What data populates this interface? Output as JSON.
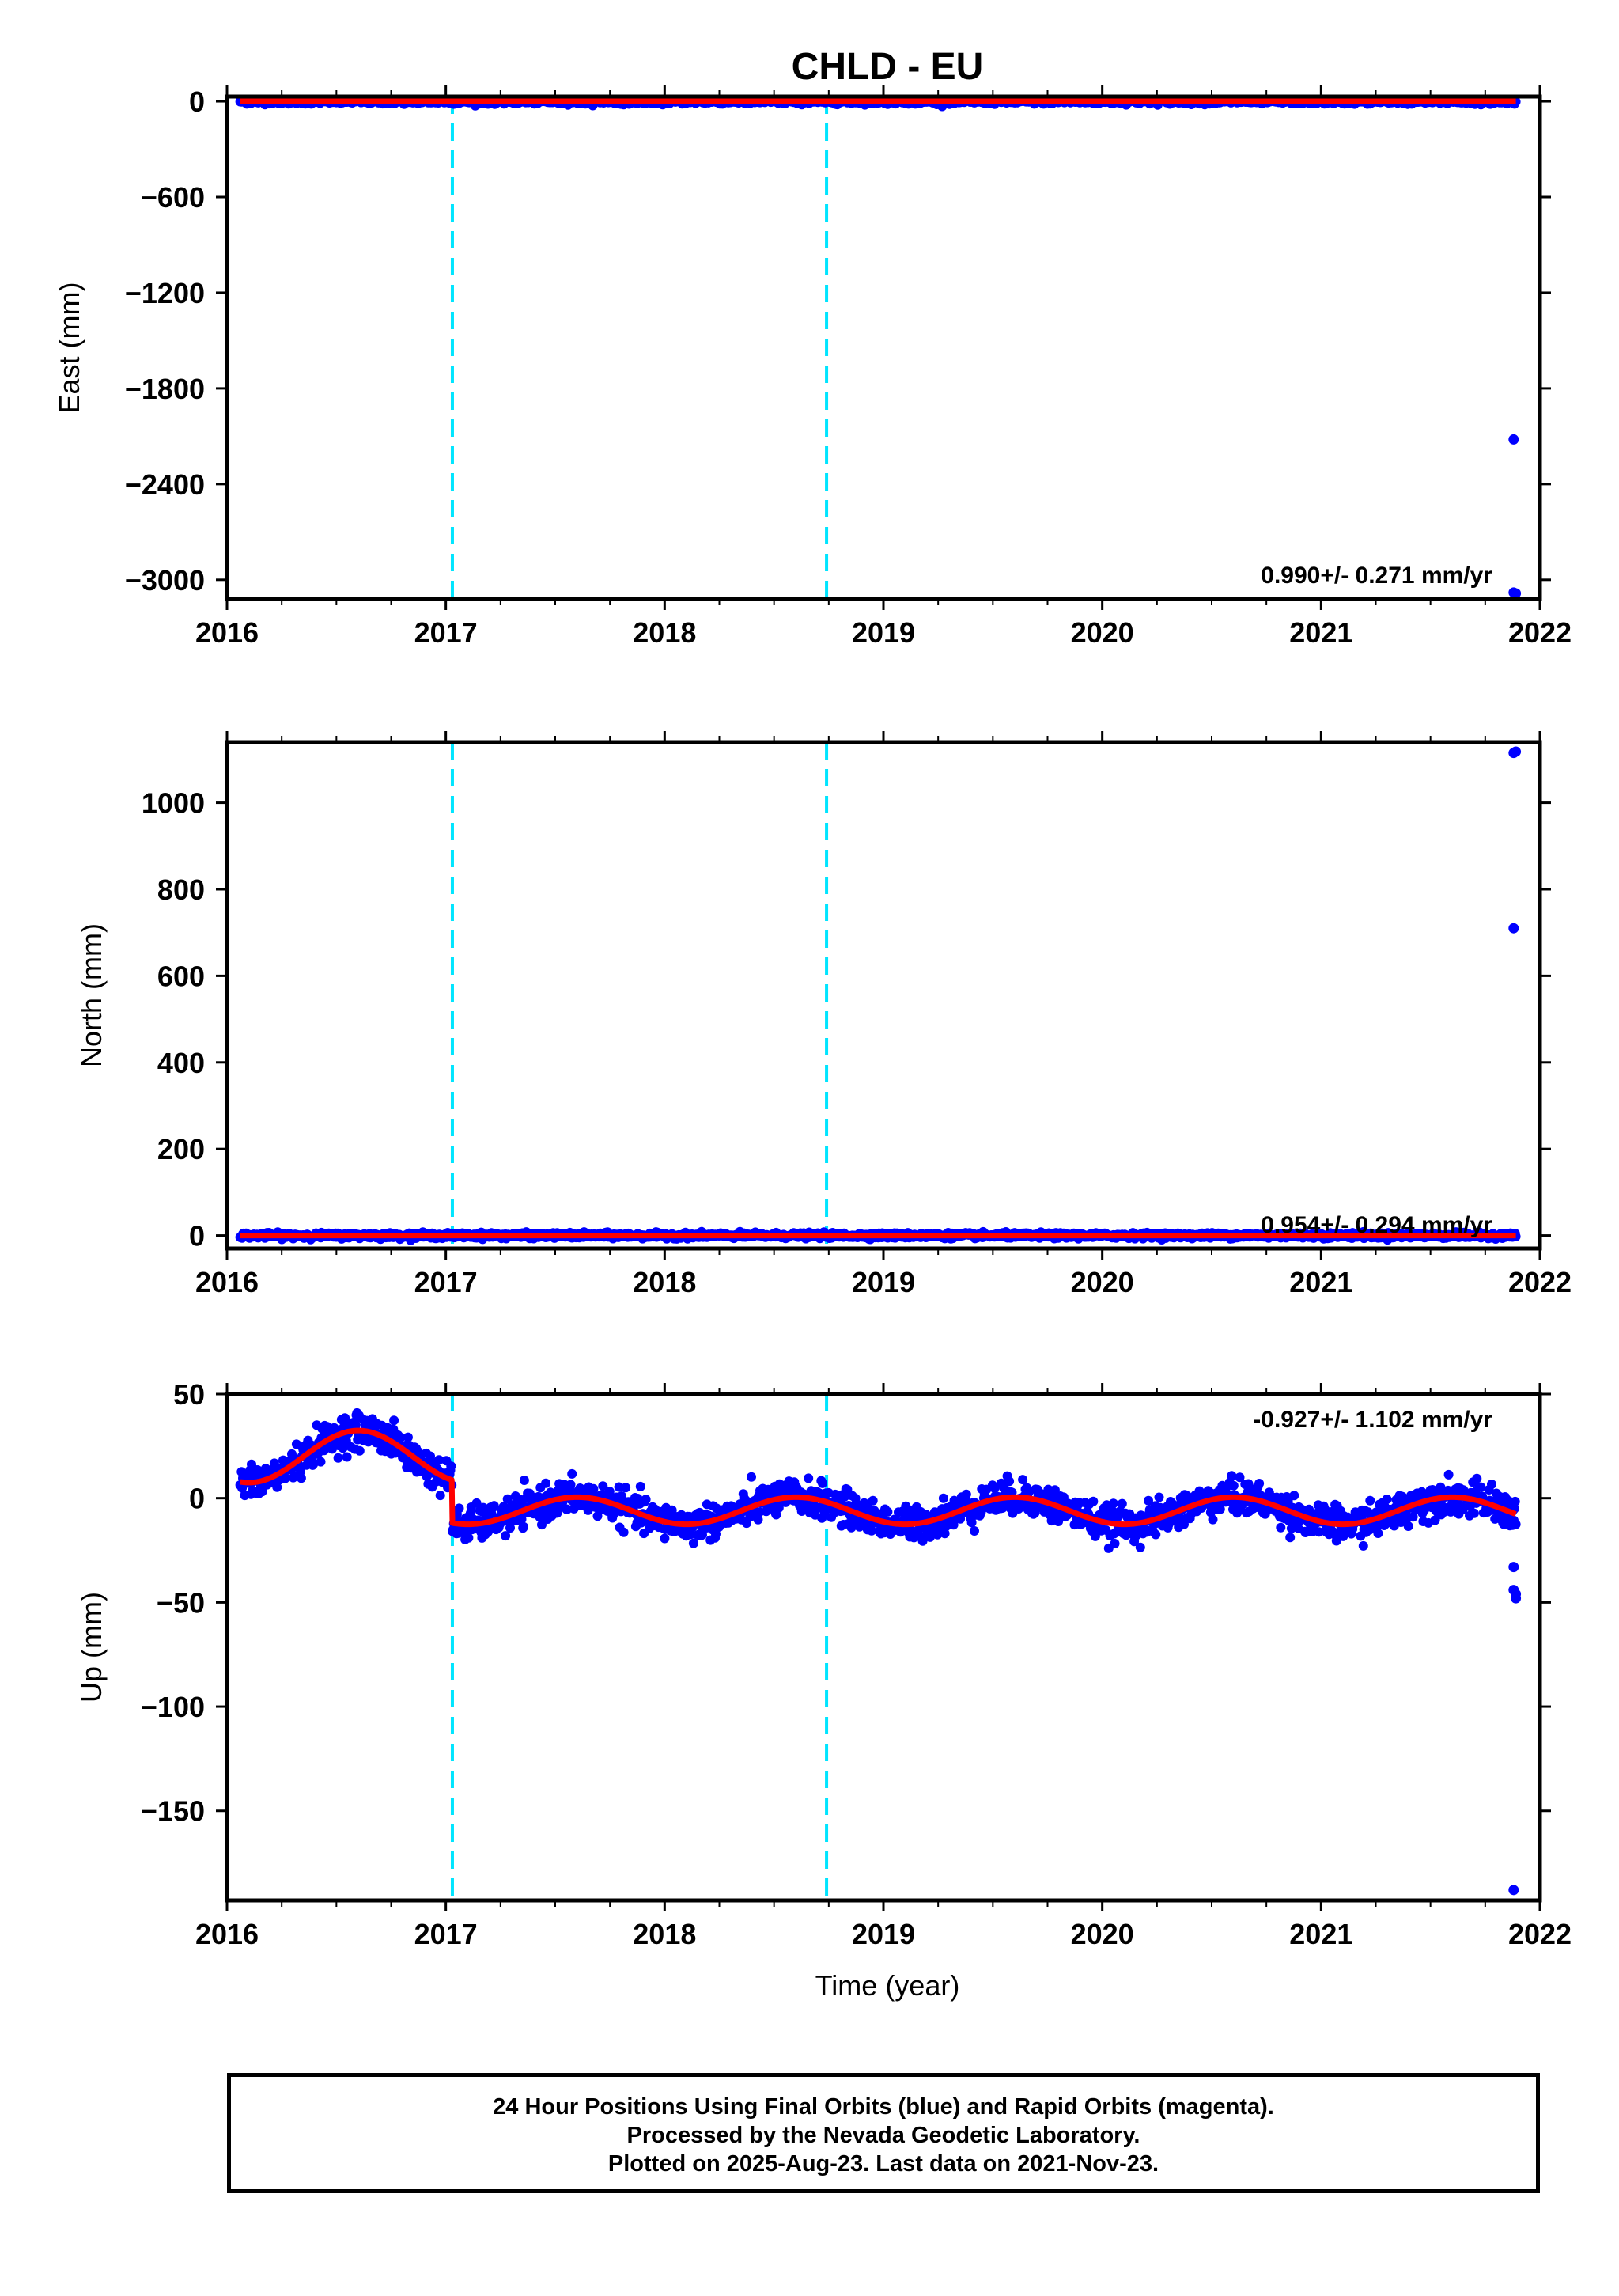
{
  "title": "CHLD - EU",
  "xlabel": "Time (year)",
  "footer": {
    "line1": "24 Hour Positions Using Final Orbits (blue) and Rapid Orbits (magenta).",
    "line2": "Processed by the Nevada Geodetic Laboratory.",
    "line3": "Plotted on 2025-Aug-23. Last data on 2021-Nov-23."
  },
  "colors": {
    "data": "#0000ff",
    "model": "#ff0000",
    "offsets": "#00e5ff",
    "axes": "#000000"
  },
  "chart_data": [
    {
      "type": "scatter",
      "ylabel": "East (mm)",
      "rate_text": "0.990+/- 0.271 mm/yr",
      "xlim": [
        2016,
        2022
      ],
      "ylim": [
        -3120,
        30
      ],
      "xticks": [
        2016,
        2017,
        2018,
        2019,
        2020,
        2021,
        2022
      ],
      "yticks": [
        0,
        -600,
        -1200,
        -1800,
        -2400,
        -3000
      ],
      "ytick_labels": [
        "0",
        "−600",
        "−1200",
        "−1800",
        "−2400",
        "−3000"
      ],
      "offset_lines_x": [
        2017.03,
        2018.74
      ],
      "series": [
        {
          "kind": "daily_positions",
          "x_range": [
            2016.06,
            2021.89
          ],
          "level": 0,
          "scatter": 8,
          "annual_amplitude": 0,
          "step_at": null,
          "step": 0
        },
        {
          "kind": "model_fit",
          "x_range": [
            2016.06,
            2021.89
          ],
          "level": 0
        }
      ],
      "outliers": [
        {
          "x": 2021.88,
          "y": -2120
        },
        {
          "x": 2021.88,
          "y": -3080
        },
        {
          "x": 2021.89,
          "y": -3085
        }
      ]
    },
    {
      "type": "scatter",
      "ylabel": "North (mm)",
      "rate_text": "0.954+/- 0.294 mm/yr",
      "xlim": [
        2016,
        2022
      ],
      "ylim": [
        -30,
        1140
      ],
      "xticks": [
        2016,
        2017,
        2018,
        2019,
        2020,
        2021,
        2022
      ],
      "yticks": [
        0,
        200,
        400,
        600,
        800,
        1000
      ],
      "ytick_labels": [
        "0",
        "200",
        "400",
        "600",
        "800",
        "1000"
      ],
      "offset_lines_x": [
        2017.03,
        2018.74
      ],
      "series": [
        {
          "kind": "daily_positions",
          "x_range": [
            2016.06,
            2021.89
          ],
          "level": 0,
          "scatter": 3,
          "annual_amplitude": 0,
          "step_at": null,
          "step": 0
        },
        {
          "kind": "model_fit",
          "x_range": [
            2016.06,
            2021.89
          ],
          "level": 0
        }
      ],
      "outliers": [
        {
          "x": 2021.88,
          "y": 710
        },
        {
          "x": 2021.88,
          "y": 1115
        },
        {
          "x": 2021.89,
          "y": 1118
        }
      ]
    },
    {
      "type": "scatter",
      "ylabel": "Up (mm)",
      "rate_text": "-0.927+/- 1.102 mm/yr",
      "xlim": [
        2016,
        2022
      ],
      "ylim": [
        -193,
        50
      ],
      "xticks": [
        2016,
        2017,
        2018,
        2019,
        2020,
        2021,
        2022
      ],
      "yticks": [
        50,
        0,
        -50,
        -100,
        -150
      ],
      "ytick_labels": [
        "50",
        "0",
        "−50",
        "−100",
        "−150"
      ],
      "offset_lines_x": [
        2017.03,
        2018.74
      ],
      "series": [
        {
          "kind": "daily_positions",
          "x_range": [
            2016.06,
            2021.89
          ],
          "level": 0,
          "scatter": 4,
          "annual_amplitude": 6.5,
          "step_at": 2017.03,
          "step": 26
        },
        {
          "kind": "model_fit",
          "x_range": [
            2016.06,
            2021.89
          ],
          "level": 0
        }
      ],
      "outliers": [
        {
          "x": 2021.88,
          "y": -33
        },
        {
          "x": 2021.88,
          "y": -44
        },
        {
          "x": 2021.89,
          "y": -46
        },
        {
          "x": 2021.89,
          "y": -48
        },
        {
          "x": 2021.88,
          "y": -188
        }
      ]
    }
  ]
}
